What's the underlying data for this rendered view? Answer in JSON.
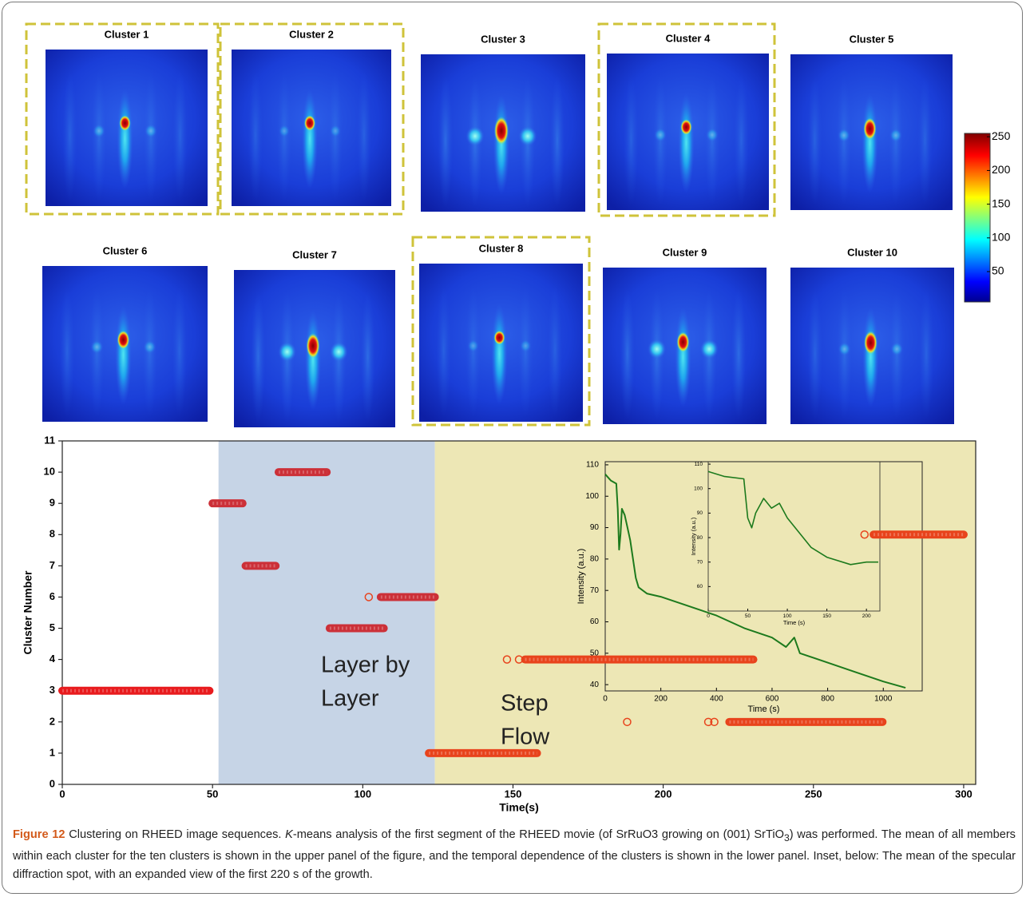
{
  "figure": {
    "clusters": [
      {
        "title": "Cluster 1",
        "highlighted": true
      },
      {
        "title": "Cluster 2",
        "highlighted": true
      },
      {
        "title": "Cluster 3",
        "highlighted": false
      },
      {
        "title": "Cluster 4",
        "highlighted": true
      },
      {
        "title": "Cluster 5",
        "highlighted": false
      },
      {
        "title": "Cluster 6",
        "highlighted": false
      },
      {
        "title": "Cluster 7",
        "highlighted": false
      },
      {
        "title": "Cluster 8",
        "highlighted": true
      },
      {
        "title": "Cluster 9",
        "highlighted": false
      },
      {
        "title": "Cluster 10",
        "highlighted": false
      }
    ],
    "colorbar": {
      "lim": [
        5,
        255
      ],
      "ticks": [
        50,
        100,
        150,
        200,
        250
      ]
    }
  },
  "chart_data": {
    "type": "scatter",
    "xlabel": "Time(s)",
    "ylabel": "Cluster Number",
    "xlim": [
      0,
      304
    ],
    "ylim": [
      0,
      11
    ],
    "xticks": [
      0,
      50,
      100,
      150,
      200,
      250,
      300
    ],
    "yticks": [
      0,
      1,
      2,
      3,
      4,
      5,
      6,
      7,
      8,
      9,
      10,
      11
    ],
    "regions": [
      {
        "lines": [
          "Layer by",
          "Layer"
        ],
        "start": 52,
        "end": 124,
        "color": "#c6d4e6"
      },
      {
        "lines": [
          "Step",
          "Flow"
        ],
        "start": 124,
        "end": 304,
        "color": "#ede7b5"
      }
    ],
    "runs": [
      {
        "cluster": 3,
        "start": 0,
        "end": 49,
        "color": "#e81b1e"
      },
      {
        "cluster": 9,
        "start": 50,
        "end": 60,
        "color": "#cc3038"
      },
      {
        "cluster": 7,
        "start": 61,
        "end": 71,
        "color": "#cc3038"
      },
      {
        "cluster": 10,
        "start": 72,
        "end": 88,
        "color": "#cc3038"
      },
      {
        "cluster": 5,
        "start": 89,
        "end": 107,
        "color": "#cc3038"
      },
      {
        "cluster": 6,
        "start": 106,
        "end": 124,
        "color": "#cc3038"
      },
      {
        "cluster": 1,
        "start": 122,
        "end": 158,
        "color": "#e8431c"
      },
      {
        "cluster": 4,
        "start": 154,
        "end": 230,
        "color": "#e8431c"
      },
      {
        "cluster": 2,
        "start": 222,
        "end": 273,
        "color": "#e8431c"
      },
      {
        "cluster": 8,
        "start": 270,
        "end": 300,
        "color": "#e8431c"
      }
    ],
    "outliers": {
      "x": [
        102,
        148,
        152,
        188,
        215,
        217,
        267
      ],
      "y": [
        6,
        4,
        4,
        2,
        2,
        2,
        8
      ],
      "color": "#e8431c"
    },
    "inset": {
      "type": "line",
      "xlabel": "Time (s)",
      "ylabel": "Intensity (a.u.)",
      "xlim": [
        0,
        1140
      ],
      "ylim": [
        38,
        111
      ],
      "xticks": [
        0,
        200,
        400,
        600,
        800,
        1000
      ],
      "yticks": [
        40,
        50,
        60,
        70,
        80,
        90,
        100,
        110
      ],
      "x": [
        0,
        20,
        40,
        45,
        50,
        55,
        60,
        70,
        80,
        90,
        100,
        110,
        120,
        150,
        200,
        300,
        400,
        500,
        600,
        650,
        680,
        700,
        800,
        900,
        1000,
        1080
      ],
      "y": [
        107,
        105,
        104,
        96,
        83,
        88,
        96,
        94,
        90,
        86,
        80,
        74,
        71,
        69,
        68,
        65,
        62,
        58,
        55,
        52,
        55,
        50,
        47,
        44,
        41,
        39
      ],
      "color": "#1d7a1d"
    },
    "inset2": {
      "type": "line",
      "xlabel": "Time (s)",
      "ylabel": "Intensity (a.u.)",
      "xlim": [
        0,
        217
      ],
      "ylim": [
        50,
        111
      ],
      "xticks": [
        0,
        50,
        100,
        150,
        200
      ],
      "yticks": [
        60,
        70,
        80,
        90,
        100,
        110
      ],
      "x": [
        0,
        20,
        45,
        50,
        55,
        60,
        70,
        80,
        90,
        100,
        110,
        130,
        150,
        180,
        200,
        215
      ],
      "y": [
        107,
        105,
        104,
        88,
        84,
        90,
        96,
        92,
        94,
        88,
        84,
        76,
        72,
        69,
        70,
        70
      ],
      "color": "#1d7a1d"
    }
  },
  "caption": {
    "label": "Figure 12",
    "parts": [
      " Clustering on RHEED image sequences. ",
      "K",
      "-means analysis of the first segment of the RHEED movie (of SrRuO3 growing on (001) SrTiO",
      "3",
      ") was performed. The mean of all members within each cluster for the ten clusters is shown in the upper panel of the figure, and the temporal dependence of the clusters is shown in the lower panel. Inset, below: The mean of the specular diffraction spot, with an expanded view of the first 220 s of the growth."
    ]
  }
}
